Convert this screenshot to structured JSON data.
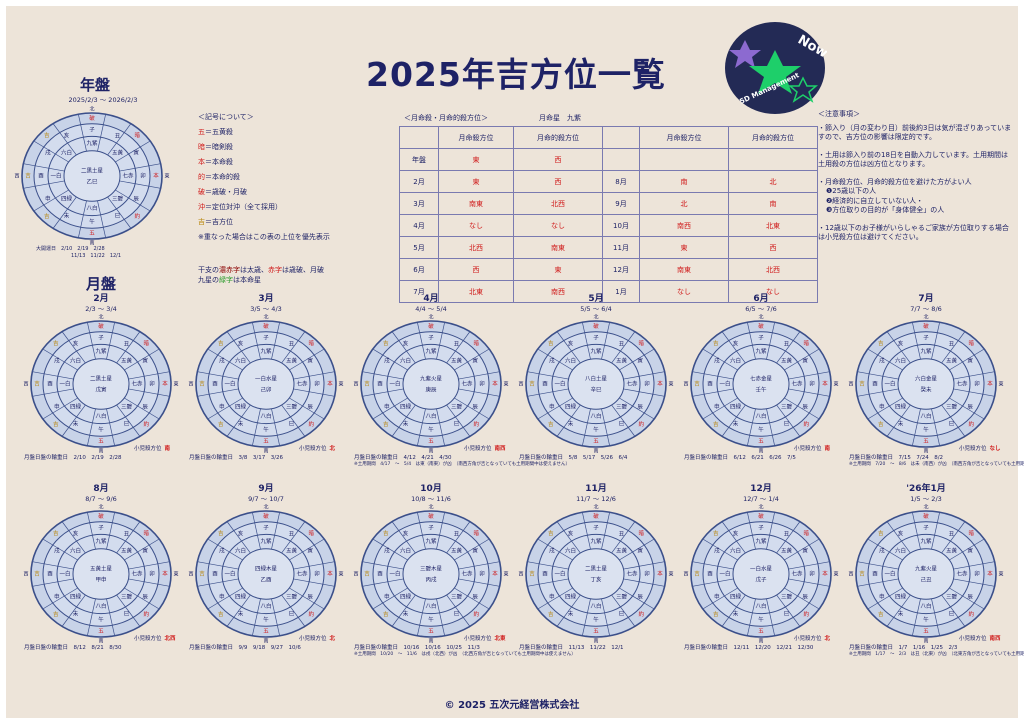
{
  "title": "2025年吉方位一覧",
  "logo": {
    "line1": "Now",
    "line2": "5D Management"
  },
  "year": {
    "label": "年盤",
    "range": "2025/2/3 〜 2026/2/3",
    "center": "二黒土星",
    "kanshi": "乙巳",
    "ring1": [
      "九紫",
      "五黄",
      "七赤",
      "三碧",
      "八白",
      "四緑",
      "一白",
      "六白"
    ],
    "ring2": [
      "子",
      "丑",
      "寅",
      "卯",
      "辰",
      "巳",
      "午",
      "未",
      "申",
      "酉",
      "戌",
      "亥"
    ],
    "marks": [
      "破",
      "暗",
      "本",
      "約",
      "五",
      "吉",
      "吉",
      "吉"
    ],
    "dates_label": "大開運日",
    "dates": [
      "2/10　2/19　2/28",
      "11/13　11/22　12/1"
    ]
  },
  "compass": {
    "n": "北",
    "s": "南",
    "e": "東",
    "w": "西"
  },
  "month_section": "月盤",
  "months": [
    {
      "label": "2月",
      "range": "2/3 〜 3/4",
      "center": "二黒土星",
      "kanshi": "戊寅",
      "foot": "月盤日盤の輪重日　2/10　2/19　2/28",
      "kid": "小児殺方位",
      "kidval": "南",
      "note": ""
    },
    {
      "label": "3月",
      "range": "3/5 〜 4/3",
      "center": "一白水星",
      "kanshi": "己卯",
      "foot": "月盤日盤の輪重日　3/8　3/17　3/26",
      "kid": "小児殺方位",
      "kidval": "北",
      "note": ""
    },
    {
      "label": "4月",
      "range": "4/4 〜 5/4",
      "center": "九紫火星",
      "kanshi": "庚辰",
      "foot": "月盤日盤の輪重日　4/12　4/21　4/30",
      "kid": "小児殺方位",
      "kidval": "南西",
      "note": "※土用期間　4/17　〜　5/4　は東（南東）が凶　（南西方角が吉となっていても土用期間中は使えません）"
    },
    {
      "label": "5月",
      "range": "5/5 〜 6/4",
      "center": "八白土星",
      "kanshi": "辛巳",
      "foot": "月盤日盤の輪重日　5/8　5/17　5/26　6/4",
      "kid": "",
      "kidval": "",
      "note": ""
    },
    {
      "label": "6月",
      "range": "6/5 〜 7/6",
      "center": "七赤金星",
      "kanshi": "壬午",
      "foot": "月盤日盤の輪重日　6/12　6/21　6/26　7/5",
      "kid": "小児殺方位",
      "kidval": "南",
      "note": ""
    },
    {
      "label": "7月",
      "range": "7/7 〜 8/6",
      "center": "六白金星",
      "kanshi": "癸未",
      "foot": "月盤日盤の輪重日　7/15　7/24　8/2",
      "kid": "小児殺方位",
      "kidval": "なし",
      "note": "※土用期間　7/20　〜　8/6　は未（南西）が凶　（南西方角が吉となっていても土用期間中は使えません）"
    },
    {
      "label": "8月",
      "range": "8/7 〜 9/6",
      "center": "五黄土星",
      "kanshi": "甲申",
      "foot": "月盤日盤の輪重日　8/12　8/21　8/30",
      "kid": "小児殺方位",
      "kidval": "北西",
      "note": ""
    },
    {
      "label": "9月",
      "range": "9/7 〜 10/7",
      "center": "四緑木星",
      "kanshi": "乙酉",
      "foot": "月盤日盤の輪重日　9/9　9/18　9/27　10/6",
      "kid": "小児殺方位",
      "kidval": "北",
      "note": ""
    },
    {
      "label": "10月",
      "range": "10/8 〜 11/6",
      "center": "三碧木星",
      "kanshi": "丙戌",
      "foot": "月盤日盤の輪重日　10/16　10/16　10/25　11/3",
      "kid": "小児殺方位",
      "kidval": "北東",
      "note": "※土用期間　10/20　〜　11/6　は戌（北西）が凶　（北西方角が吉となっていても土用期間中は使えません）"
    },
    {
      "label": "11月",
      "range": "11/7 〜 12/6",
      "center": "二黒土星",
      "kanshi": "丁亥",
      "foot": "月盤日盤の輪重日　11/13　11/22　12/1",
      "kid": "",
      "kidval": "",
      "note": ""
    },
    {
      "label": "12月",
      "range": "12/7 〜 1/4",
      "center": "一白水星",
      "kanshi": "戊子",
      "foot": "月盤日盤の輪重日　12/11　12/20　12/21　12/30",
      "kid": "小児殺方位",
      "kidval": "北",
      "note": ""
    },
    {
      "label": "'26年1月",
      "range": "1/5 〜 2/3",
      "center": "九紫火星",
      "kanshi": "己丑",
      "foot": "月盤日盤の輪重日　1/7　1/16　1/25　2/3",
      "kid": "小児殺方位",
      "kidval": "南西",
      "note": "※土用期間　1/17　〜　2/3　は丑（北東）が凶　（北東方角が吉となっていても土用期間中は使えません）"
    }
  ],
  "legend": {
    "header": "＜記号について＞",
    "items": [
      {
        "k": "五",
        "v": "＝五黄殺"
      },
      {
        "k": "暗",
        "v": "＝暗剣殺"
      },
      {
        "k": "本",
        "v": "＝本命殺"
      },
      {
        "k": "的",
        "v": "＝本命的殺"
      },
      {
        "k": "破",
        "v": "＝歳破・月破"
      },
      {
        "k": "沖",
        "v": "＝定位対沖（全て採用）"
      },
      {
        "k": "吉",
        "v": "＝吉方位"
      }
    ],
    "priority": "※重なった場合はこの表の上位を優先表示",
    "line1a": "干支の",
    "line1b": "濃赤字",
    "line1c": "は太歳、",
    "line1d": "赤字",
    "line1e": "は歳破、月破",
    "line2a": "九星の",
    "line2b": "緑字",
    "line2c": "は本命星"
  },
  "direction_table": {
    "header": "＜月命殺・月命的殺方位＞",
    "star": "月命星　九紫",
    "col1": "月命殺方位",
    "col2": "月命的殺方位",
    "rows_left": [
      [
        "年盤",
        "東",
        "西"
      ],
      [
        "2月",
        "東",
        "西"
      ],
      [
        "3月",
        "南東",
        "北西"
      ],
      [
        "4月",
        "なし",
        "なし"
      ],
      [
        "5月",
        "北西",
        "南東"
      ],
      [
        "6月",
        "西",
        "東"
      ],
      [
        "7月",
        "北東",
        "南西"
      ]
    ],
    "rows_right": [
      [
        "8月",
        "南",
        "北"
      ],
      [
        "9月",
        "北",
        "南"
      ],
      [
        "10月",
        "南西",
        "北東"
      ],
      [
        "11月",
        "東",
        "西"
      ],
      [
        "12月",
        "南東",
        "北西"
      ],
      [
        "1月",
        "なし",
        "なし"
      ]
    ]
  },
  "notes": {
    "header": "＜注意事項＞",
    "p1": "・節入り（月の変わり目）前後約3日は気が混ざりあっていますので、吉方位の影響は限定的です。",
    "p2": "・土用は節入り前の18日を自動入力しています。土用期間は土用殺の方位は凶方位となります。",
    "p3": "・月命殺方位、月命的殺方位を避けた方がよい人",
    "p3a": "❶25歳以下の人",
    "p3b": "❷経済的に自立していない人・",
    "p3c": "❸方位取りの目的が「身体健全」の人",
    "p4": "・12歳以下のお子様がいらしゃるご家族が方位取りする場合は小児殺方位は避けてください。"
  },
  "copyright": "© 2025 五次元経営株式会社",
  "colors": {
    "navy": "#1e2266",
    "red": "#d01a1a",
    "green": "#2a9a2a",
    "gold": "#b8860b",
    "bg": "#ede4d9"
  }
}
